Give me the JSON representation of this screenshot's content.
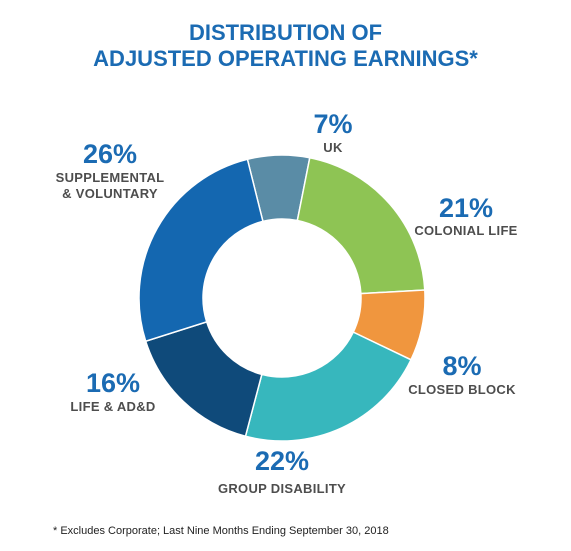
{
  "chart_data": {
    "type": "pie",
    "title": "DISTRIBUTION OF\nADJUSTED OPERATING EARNINGS*",
    "title_lines": [
      "DISTRIBUTION OF",
      "ADJUSTED OPERATING EARNINGS*"
    ],
    "donut": true,
    "slices": [
      {
        "label": "UK",
        "value": 7,
        "pct_label": "7%",
        "label_lines": [
          "UK"
        ],
        "color": "#5a8ca6"
      },
      {
        "label": "COLONIAL LIFE",
        "value": 21,
        "pct_label": "21%",
        "label_lines": [
          "COLONIAL LIFE"
        ],
        "color": "#8ec454"
      },
      {
        "label": "CLOSED BLOCK",
        "value": 8,
        "pct_label": "8%",
        "label_lines": [
          "CLOSED BLOCK"
        ],
        "color": "#f0963e"
      },
      {
        "label": "GROUP DISABILITY",
        "value": 22,
        "pct_label": "22%",
        "label_lines": [
          "GROUP DISABILITY"
        ],
        "color": "#37b7bd"
      },
      {
        "label": "LIFE & AD&D",
        "value": 16,
        "pct_label": "16%",
        "label_lines": [
          "LIFE & AD&D"
        ],
        "color": "#0f4a7a"
      },
      {
        "label": "SUPPLEMENTAL & VOLUNTARY",
        "value": 26,
        "pct_label": "26%",
        "label_lines": [
          "SUPPLEMENTAL",
          "& VOLUNTARY"
        ],
        "color": "#1467b0"
      }
    ],
    "footnote": "* Excludes Corporate; Last Nine Months Ending September 30, 2018"
  }
}
